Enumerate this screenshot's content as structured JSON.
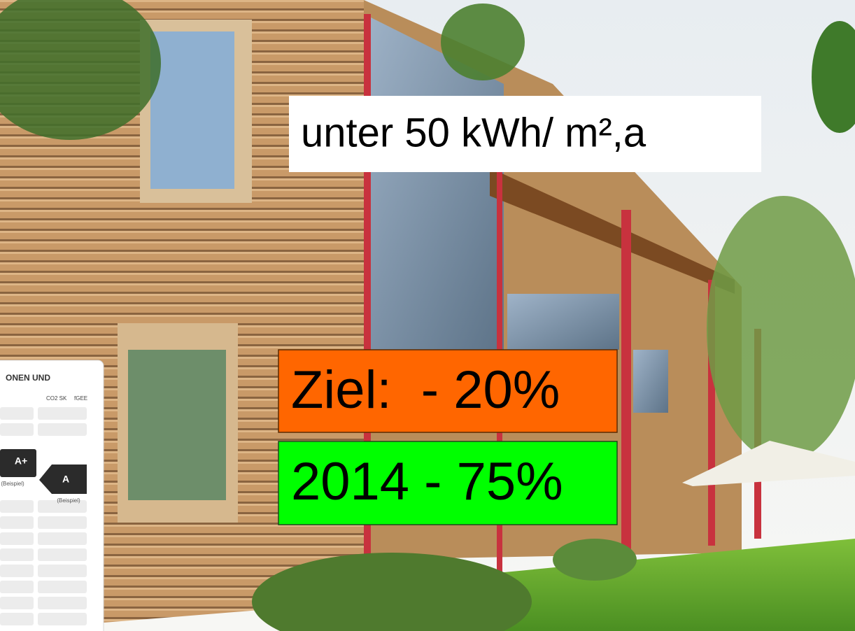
{
  "overlay": {
    "headline": "unter 50 kWh/ m²,a",
    "target": "Ziel:  - 20%",
    "year_reduction": "2014 - 75%"
  },
  "energy_label": {
    "heading": "ONEN UND",
    "column_1": "CO2 SK",
    "column_2": "fGEE",
    "class_1": "A+",
    "class_1_note": "(Beispiel)",
    "class_2": "A",
    "class_2_note": "(Beispiel)"
  }
}
